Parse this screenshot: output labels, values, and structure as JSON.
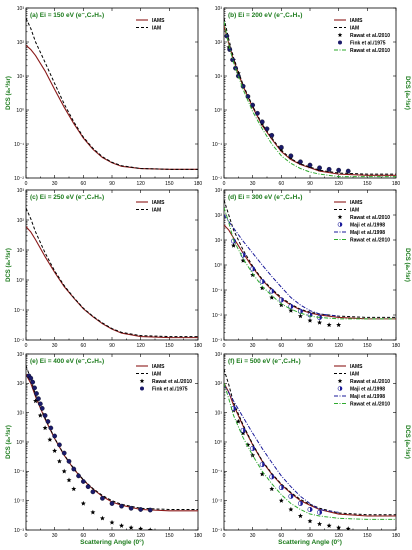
{
  "figure": {
    "xlabel": "Scattering Angle (0°)",
    "ylabel": "DCS (a₀²/sr)"
  },
  "colors": {
    "iams": "#8b1a1a",
    "iam": "#000000",
    "rawat_star": "#000000",
    "fink": "#1a1a6a",
    "maji": "#1a1a9a",
    "rawat_dashdot": "#2eaa2e",
    "title": "#1a7a1a"
  },
  "chart_data": [
    {
      "type": "line",
      "title": "(a) Ei = 150 eV (e⁻,C₂H₆)",
      "xlim": [
        0,
        180
      ],
      "yscale": "log",
      "ylim_exp": [
        -2,
        3
      ],
      "xticks": [
        0,
        30,
        60,
        90,
        120,
        150,
        180
      ],
      "series": [
        {
          "name": "IAMS",
          "style": "iams",
          "x": [
            0,
            5,
            10,
            20,
            30,
            40,
            50,
            60,
            70,
            80,
            90,
            100,
            120,
            150,
            180
          ],
          "y": [
            80,
            60,
            40,
            14,
            4,
            1.2,
            0.4,
            0.15,
            0.07,
            0.04,
            0.028,
            0.022,
            0.019,
            0.018,
            0.018
          ]
        },
        {
          "name": "IAM",
          "style": "iam",
          "x": [
            0,
            5,
            10,
            20,
            30,
            40,
            50,
            60,
            70,
            80,
            90,
            100,
            120,
            150,
            180
          ],
          "y": [
            500,
            250,
            100,
            25,
            6,
            1.5,
            0.45,
            0.16,
            0.075,
            0.042,
            0.029,
            0.023,
            0.019,
            0.018,
            0.018
          ]
        }
      ]
    },
    {
      "type": "line",
      "title": "(b) Ei = 200 eV (e⁻,C₂H₆)",
      "xlim": [
        0,
        180
      ],
      "yscale": "log",
      "ylim_exp": [
        -2,
        3
      ],
      "xticks": [
        0,
        30,
        60,
        90,
        120,
        150,
        180
      ],
      "series": [
        {
          "name": "IAMS",
          "style": "iams",
          "x": [
            0,
            5,
            10,
            20,
            30,
            40,
            50,
            60,
            70,
            80,
            90,
            100,
            120,
            150,
            180
          ],
          "y": [
            300,
            90,
            30,
            5,
            1.2,
            0.35,
            0.14,
            0.06,
            0.035,
            0.025,
            0.02,
            0.016,
            0.013,
            0.012,
            0.012
          ]
        },
        {
          "name": "IAM",
          "style": "iam",
          "x": [
            0,
            5,
            10,
            20,
            30,
            40,
            50,
            60,
            70,
            80,
            90,
            100,
            120,
            150,
            180
          ],
          "y": [
            500,
            120,
            35,
            5.5,
            1.3,
            0.38,
            0.15,
            0.065,
            0.037,
            0.026,
            0.021,
            0.017,
            0.014,
            0.013,
            0.013
          ]
        },
        {
          "name": "Rawat et al./2010",
          "style": "star",
          "x": [
            5,
            10,
            15,
            20,
            25,
            30,
            40,
            50,
            60,
            70,
            80,
            90,
            100,
            110,
            120,
            130
          ],
          "y": [
            70,
            30,
            12,
            5,
            2.5,
            1.3,
            0.4,
            0.17,
            0.07,
            0.04,
            0.028,
            0.022,
            0.018,
            0.017,
            0.016,
            0.015
          ]
        },
        {
          "name": "Fink et al./1975",
          "style": "circle",
          "x": [
            3,
            6,
            9,
            12,
            15,
            20,
            25,
            30,
            35,
            40,
            45,
            50,
            60,
            70,
            80,
            90,
            100,
            110,
            120,
            130
          ],
          "y": [
            150,
            60,
            30,
            17,
            10,
            5,
            2.5,
            1.4,
            0.8,
            0.45,
            0.28,
            0.18,
            0.08,
            0.045,
            0.03,
            0.024,
            0.02,
            0.018,
            0.017,
            0.016
          ]
        },
        {
          "name": "Rawat et al./2010",
          "style": "dashdot",
          "x": [
            0,
            5,
            10,
            20,
            30,
            40,
            50,
            60,
            70,
            80,
            90,
            100,
            120,
            150,
            180
          ],
          "y": [
            400,
            80,
            25,
            4,
            0.9,
            0.28,
            0.1,
            0.045,
            0.027,
            0.019,
            0.015,
            0.013,
            0.011,
            0.011,
            0.011
          ]
        }
      ]
    },
    {
      "type": "line",
      "title": "(c) Ei = 250 eV (e⁻,C₂H₆)",
      "xlim": [
        0,
        180
      ],
      "yscale": "log",
      "ylim_exp": [
        -2,
        3
      ],
      "xticks": [
        0,
        30,
        60,
        90,
        120,
        150,
        180
      ],
      "series": [
        {
          "name": "IAMS",
          "style": "iams",
          "x": [
            0,
            5,
            10,
            20,
            30,
            40,
            50,
            60,
            70,
            80,
            90,
            100,
            120,
            150,
            180
          ],
          "y": [
            60,
            40,
            22,
            6,
            1.8,
            0.6,
            0.25,
            0.11,
            0.06,
            0.035,
            0.023,
            0.017,
            0.013,
            0.012,
            0.012
          ]
        },
        {
          "name": "IAM",
          "style": "iam",
          "x": [
            0,
            5,
            10,
            20,
            30,
            40,
            50,
            60,
            70,
            80,
            90,
            100,
            120,
            150,
            180
          ],
          "y": [
            250,
            110,
            40,
            8,
            2,
            0.65,
            0.26,
            0.115,
            0.062,
            0.037,
            0.024,
            0.018,
            0.014,
            0.013,
            0.013
          ]
        }
      ]
    },
    {
      "type": "line",
      "title": "(d) Ei = 300 eV (e⁻,C₂H₆)",
      "xlim": [
        0,
        180
      ],
      "yscale": "log",
      "ylim_exp": [
        -3,
        3
      ],
      "xticks": [
        0,
        30,
        60,
        90,
        120,
        150,
        180
      ],
      "series": [
        {
          "name": "IAMS",
          "style": "iams",
          "x": [
            0,
            5,
            10,
            20,
            30,
            40,
            50,
            60,
            70,
            80,
            90,
            100,
            120,
            150,
            180
          ],
          "y": [
            40,
            25,
            12,
            3,
            0.8,
            0.25,
            0.1,
            0.045,
            0.025,
            0.016,
            0.012,
            0.01,
            0.008,
            0.007,
            0.007
          ]
        },
        {
          "name": "IAM",
          "style": "iam",
          "x": [
            0,
            5,
            10,
            20,
            30,
            40,
            50,
            60,
            70,
            80,
            90,
            100,
            120,
            150,
            180
          ],
          "y": [
            400,
            100,
            25,
            4,
            0.9,
            0.27,
            0.11,
            0.05,
            0.027,
            0.017,
            0.013,
            0.011,
            0.009,
            0.008,
            0.008
          ]
        },
        {
          "name": "Rawat et al./2010",
          "style": "star",
          "x": [
            10,
            20,
            30,
            40,
            50,
            60,
            70,
            80,
            90,
            100,
            110,
            120
          ],
          "y": [
            6,
            1.5,
            0.4,
            0.12,
            0.05,
            0.025,
            0.015,
            0.009,
            0.006,
            0.005,
            0.004,
            0.004
          ]
        },
        {
          "name": "Maji et al./1998",
          "style": "halfcircle",
          "x": [
            10,
            20,
            30,
            40,
            50,
            60,
            70,
            80,
            90,
            100
          ],
          "y": [
            9,
            2.5,
            0.7,
            0.22,
            0.09,
            0.04,
            0.022,
            0.014,
            0.01,
            0.008
          ]
        },
        {
          "name": "Maji et al./1998",
          "style": "dashdotblue",
          "x": [
            0,
            10,
            20,
            30,
            40,
            50,
            60,
            70,
            80,
            90,
            100,
            120
          ],
          "y": [
            100,
            30,
            9,
            3,
            1,
            0.35,
            0.13,
            0.05,
            0.025,
            0.015,
            0.011,
            0.009
          ]
        },
        {
          "name": "Rawat et al./2010",
          "style": "dashdot",
          "x": [
            0,
            5,
            10,
            20,
            30,
            40,
            50,
            60,
            70,
            80,
            90,
            100,
            120,
            150,
            180
          ],
          "y": [
            200,
            50,
            10,
            1.8,
            0.45,
            0.14,
            0.06,
            0.028,
            0.017,
            0.012,
            0.009,
            0.008,
            0.007,
            0.007,
            0.007
          ]
        }
      ]
    },
    {
      "type": "line",
      "title": "(e) Ei = 400 eV (e⁻,C₂H₆)",
      "xlim": [
        0,
        180
      ],
      "yscale": "log",
      "ylim_exp": [
        -3,
        3
      ],
      "xticks": [
        0,
        30,
        60,
        90,
        120,
        150,
        180
      ],
      "series": [
        {
          "name": "IAMS",
          "style": "iams",
          "x": [
            0,
            5,
            10,
            20,
            30,
            40,
            50,
            60,
            70,
            80,
            90,
            100,
            120,
            150,
            180
          ],
          "y": [
            200,
            100,
            35,
            6,
            1.3,
            0.35,
            0.12,
            0.05,
            0.025,
            0.014,
            0.009,
            0.007,
            0.005,
            0.0045,
            0.0045
          ]
        },
        {
          "name": "IAM",
          "style": "iam",
          "x": [
            0,
            5,
            10,
            20,
            30,
            40,
            50,
            60,
            70,
            80,
            90,
            100,
            120,
            150,
            180
          ],
          "y": [
            400,
            140,
            40,
            6.5,
            1.35,
            0.36,
            0.125,
            0.052,
            0.026,
            0.015,
            0.01,
            0.0075,
            0.0055,
            0.005,
            0.005
          ]
        },
        {
          "name": "Rawat et al./2010",
          "style": "star",
          "x": [
            10,
            15,
            20,
            25,
            30,
            35,
            40,
            45,
            50,
            60,
            70,
            80,
            90,
            100,
            110,
            120,
            130
          ],
          "y": [
            25,
            8,
            3,
            1.2,
            0.5,
            0.22,
            0.1,
            0.05,
            0.025,
            0.008,
            0.004,
            0.0025,
            0.0018,
            0.0014,
            0.0012,
            0.0011,
            0.001
          ]
        },
        {
          "name": "Fink et al./1975",
          "style": "circle",
          "x": [
            3,
            5,
            7,
            9,
            11,
            13,
            15,
            17,
            20,
            23,
            26,
            30,
            35,
            40,
            45,
            50,
            55,
            60,
            65,
            70,
            80,
            90,
            100,
            110,
            120,
            130
          ],
          "y": [
            180,
            150,
            110,
            70,
            45,
            30,
            20,
            14,
            8,
            5,
            3,
            1.6,
            0.8,
            0.42,
            0.22,
            0.12,
            0.07,
            0.045,
            0.03,
            0.02,
            0.012,
            0.008,
            0.0065,
            0.0055,
            0.005,
            0.0048
          ]
        }
      ]
    },
    {
      "type": "line",
      "title": "(f) Ei = 500 eV (e⁻,C₂H₆)",
      "xlim": [
        0,
        180
      ],
      "yscale": "log",
      "ylim_exp": [
        -3,
        3
      ],
      "xticks": [
        0,
        30,
        60,
        90,
        120,
        150,
        180
      ],
      "series": [
        {
          "name": "IAMS",
          "style": "iams",
          "x": [
            0,
            5,
            10,
            20,
            30,
            40,
            50,
            60,
            70,
            80,
            90,
            100,
            120,
            150,
            180
          ],
          "y": [
            100,
            50,
            18,
            3.5,
            0.8,
            0.22,
            0.08,
            0.035,
            0.018,
            0.01,
            0.007,
            0.005,
            0.0035,
            0.003,
            0.003
          ]
        },
        {
          "name": "IAM",
          "style": "iam",
          "x": [
            0,
            5,
            10,
            20,
            30,
            40,
            50,
            60,
            70,
            80,
            90,
            100,
            120,
            150,
            180
          ],
          "y": [
            300,
            90,
            22,
            3.8,
            0.85,
            0.23,
            0.085,
            0.037,
            0.019,
            0.011,
            0.0075,
            0.0055,
            0.0038,
            0.0033,
            0.0033
          ]
        },
        {
          "name": "Rawat et al./2010",
          "style": "star",
          "x": [
            10,
            15,
            20,
            25,
            30,
            40,
            50,
            60,
            70,
            80,
            90,
            100,
            110,
            120,
            130
          ],
          "y": [
            12,
            5,
            2,
            0.8,
            0.35,
            0.08,
            0.025,
            0.01,
            0.005,
            0.003,
            0.002,
            0.0016,
            0.0014,
            0.0012,
            0.0011
          ]
        },
        {
          "name": "Maji et al./1998",
          "style": "halfcircle",
          "x": [
            10,
            20,
            30,
            40,
            50,
            60,
            70,
            80,
            90,
            100
          ],
          "y": [
            14,
            2.5,
            0.6,
            0.17,
            0.065,
            0.028,
            0.014,
            0.008,
            0.005,
            0.004
          ]
        },
        {
          "name": "Maji et al./1998",
          "style": "dashdotblue",
          "x": [
            0,
            10,
            20,
            30,
            40,
            50,
            60,
            70,
            80,
            90,
            100,
            120
          ],
          "y": [
            90,
            25,
            7,
            2,
            0.6,
            0.2,
            0.07,
            0.03,
            0.014,
            0.008,
            0.005,
            0.004
          ]
        },
        {
          "name": "Rawat et al./2010",
          "style": "dashdot",
          "x": [
            0,
            5,
            10,
            20,
            30,
            40,
            50,
            60,
            70,
            80,
            90,
            100,
            120,
            150,
            180
          ],
          "y": [
            100,
            30,
            8,
            1.4,
            0.35,
            0.1,
            0.038,
            0.016,
            0.008,
            0.005,
            0.0035,
            0.003,
            0.0025,
            0.0023,
            0.0023
          ]
        }
      ]
    }
  ]
}
